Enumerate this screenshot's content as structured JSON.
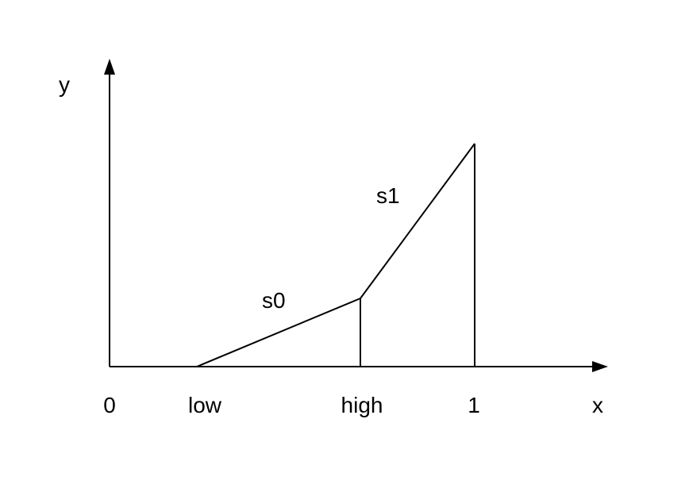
{
  "axes": {
    "x_label": "x",
    "y_label": "y"
  },
  "ticks": {
    "origin": "0",
    "low": "low",
    "high": "high",
    "one": "1"
  },
  "segments": {
    "s0": "s0",
    "s1": "s1"
  },
  "colors": {
    "stroke": "#000000",
    "background": "#ffffff"
  }
}
